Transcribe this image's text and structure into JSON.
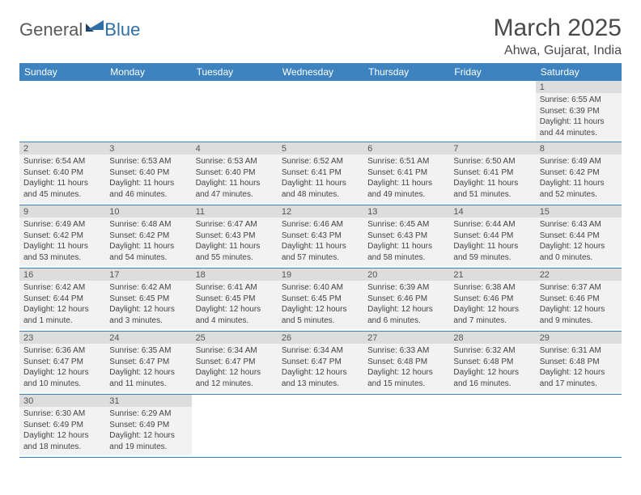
{
  "brand": {
    "part1": "General",
    "part2": "Blue"
  },
  "title": "March 2025",
  "location": "Ahwa, Gujarat, India",
  "colors": {
    "header_bg": "#3d83bf",
    "header_text": "#ffffff",
    "daynum_bg": "#dddddd",
    "cell_bg": "#f2f2f2",
    "rule": "#3d83bf",
    "logo_gray": "#5a5a5a",
    "logo_blue": "#2f6fa8"
  },
  "weekdays": [
    "Sunday",
    "Monday",
    "Tuesday",
    "Wednesday",
    "Thursday",
    "Friday",
    "Saturday"
  ],
  "weeks": [
    [
      null,
      null,
      null,
      null,
      null,
      null,
      {
        "n": "1",
        "sunrise": "Sunrise: 6:55 AM",
        "sunset": "Sunset: 6:39 PM",
        "daylight": "Daylight: 11 hours and 44 minutes."
      }
    ],
    [
      {
        "n": "2",
        "sunrise": "Sunrise: 6:54 AM",
        "sunset": "Sunset: 6:40 PM",
        "daylight": "Daylight: 11 hours and 45 minutes."
      },
      {
        "n": "3",
        "sunrise": "Sunrise: 6:53 AM",
        "sunset": "Sunset: 6:40 PM",
        "daylight": "Daylight: 11 hours and 46 minutes."
      },
      {
        "n": "4",
        "sunrise": "Sunrise: 6:53 AM",
        "sunset": "Sunset: 6:40 PM",
        "daylight": "Daylight: 11 hours and 47 minutes."
      },
      {
        "n": "5",
        "sunrise": "Sunrise: 6:52 AM",
        "sunset": "Sunset: 6:41 PM",
        "daylight": "Daylight: 11 hours and 48 minutes."
      },
      {
        "n": "6",
        "sunrise": "Sunrise: 6:51 AM",
        "sunset": "Sunset: 6:41 PM",
        "daylight": "Daylight: 11 hours and 49 minutes."
      },
      {
        "n": "7",
        "sunrise": "Sunrise: 6:50 AM",
        "sunset": "Sunset: 6:41 PM",
        "daylight": "Daylight: 11 hours and 51 minutes."
      },
      {
        "n": "8",
        "sunrise": "Sunrise: 6:49 AM",
        "sunset": "Sunset: 6:42 PM",
        "daylight": "Daylight: 11 hours and 52 minutes."
      }
    ],
    [
      {
        "n": "9",
        "sunrise": "Sunrise: 6:49 AM",
        "sunset": "Sunset: 6:42 PM",
        "daylight": "Daylight: 11 hours and 53 minutes."
      },
      {
        "n": "10",
        "sunrise": "Sunrise: 6:48 AM",
        "sunset": "Sunset: 6:42 PM",
        "daylight": "Daylight: 11 hours and 54 minutes."
      },
      {
        "n": "11",
        "sunrise": "Sunrise: 6:47 AM",
        "sunset": "Sunset: 6:43 PM",
        "daylight": "Daylight: 11 hours and 55 minutes."
      },
      {
        "n": "12",
        "sunrise": "Sunrise: 6:46 AM",
        "sunset": "Sunset: 6:43 PM",
        "daylight": "Daylight: 11 hours and 57 minutes."
      },
      {
        "n": "13",
        "sunrise": "Sunrise: 6:45 AM",
        "sunset": "Sunset: 6:43 PM",
        "daylight": "Daylight: 11 hours and 58 minutes."
      },
      {
        "n": "14",
        "sunrise": "Sunrise: 6:44 AM",
        "sunset": "Sunset: 6:44 PM",
        "daylight": "Daylight: 11 hours and 59 minutes."
      },
      {
        "n": "15",
        "sunrise": "Sunrise: 6:43 AM",
        "sunset": "Sunset: 6:44 PM",
        "daylight": "Daylight: 12 hours and 0 minutes."
      }
    ],
    [
      {
        "n": "16",
        "sunrise": "Sunrise: 6:42 AM",
        "sunset": "Sunset: 6:44 PM",
        "daylight": "Daylight: 12 hours and 1 minute."
      },
      {
        "n": "17",
        "sunrise": "Sunrise: 6:42 AM",
        "sunset": "Sunset: 6:45 PM",
        "daylight": "Daylight: 12 hours and 3 minutes."
      },
      {
        "n": "18",
        "sunrise": "Sunrise: 6:41 AM",
        "sunset": "Sunset: 6:45 PM",
        "daylight": "Daylight: 12 hours and 4 minutes."
      },
      {
        "n": "19",
        "sunrise": "Sunrise: 6:40 AM",
        "sunset": "Sunset: 6:45 PM",
        "daylight": "Daylight: 12 hours and 5 minutes."
      },
      {
        "n": "20",
        "sunrise": "Sunrise: 6:39 AM",
        "sunset": "Sunset: 6:46 PM",
        "daylight": "Daylight: 12 hours and 6 minutes."
      },
      {
        "n": "21",
        "sunrise": "Sunrise: 6:38 AM",
        "sunset": "Sunset: 6:46 PM",
        "daylight": "Daylight: 12 hours and 7 minutes."
      },
      {
        "n": "22",
        "sunrise": "Sunrise: 6:37 AM",
        "sunset": "Sunset: 6:46 PM",
        "daylight": "Daylight: 12 hours and 9 minutes."
      }
    ],
    [
      {
        "n": "23",
        "sunrise": "Sunrise: 6:36 AM",
        "sunset": "Sunset: 6:47 PM",
        "daylight": "Daylight: 12 hours and 10 minutes."
      },
      {
        "n": "24",
        "sunrise": "Sunrise: 6:35 AM",
        "sunset": "Sunset: 6:47 PM",
        "daylight": "Daylight: 12 hours and 11 minutes."
      },
      {
        "n": "25",
        "sunrise": "Sunrise: 6:34 AM",
        "sunset": "Sunset: 6:47 PM",
        "daylight": "Daylight: 12 hours and 12 minutes."
      },
      {
        "n": "26",
        "sunrise": "Sunrise: 6:34 AM",
        "sunset": "Sunset: 6:47 PM",
        "daylight": "Daylight: 12 hours and 13 minutes."
      },
      {
        "n": "27",
        "sunrise": "Sunrise: 6:33 AM",
        "sunset": "Sunset: 6:48 PM",
        "daylight": "Daylight: 12 hours and 15 minutes."
      },
      {
        "n": "28",
        "sunrise": "Sunrise: 6:32 AM",
        "sunset": "Sunset: 6:48 PM",
        "daylight": "Daylight: 12 hours and 16 minutes."
      },
      {
        "n": "29",
        "sunrise": "Sunrise: 6:31 AM",
        "sunset": "Sunset: 6:48 PM",
        "daylight": "Daylight: 12 hours and 17 minutes."
      }
    ],
    [
      {
        "n": "30",
        "sunrise": "Sunrise: 6:30 AM",
        "sunset": "Sunset: 6:49 PM",
        "daylight": "Daylight: 12 hours and 18 minutes."
      },
      {
        "n": "31",
        "sunrise": "Sunrise: 6:29 AM",
        "sunset": "Sunset: 6:49 PM",
        "daylight": "Daylight: 12 hours and 19 minutes."
      },
      null,
      null,
      null,
      null,
      null
    ]
  ]
}
